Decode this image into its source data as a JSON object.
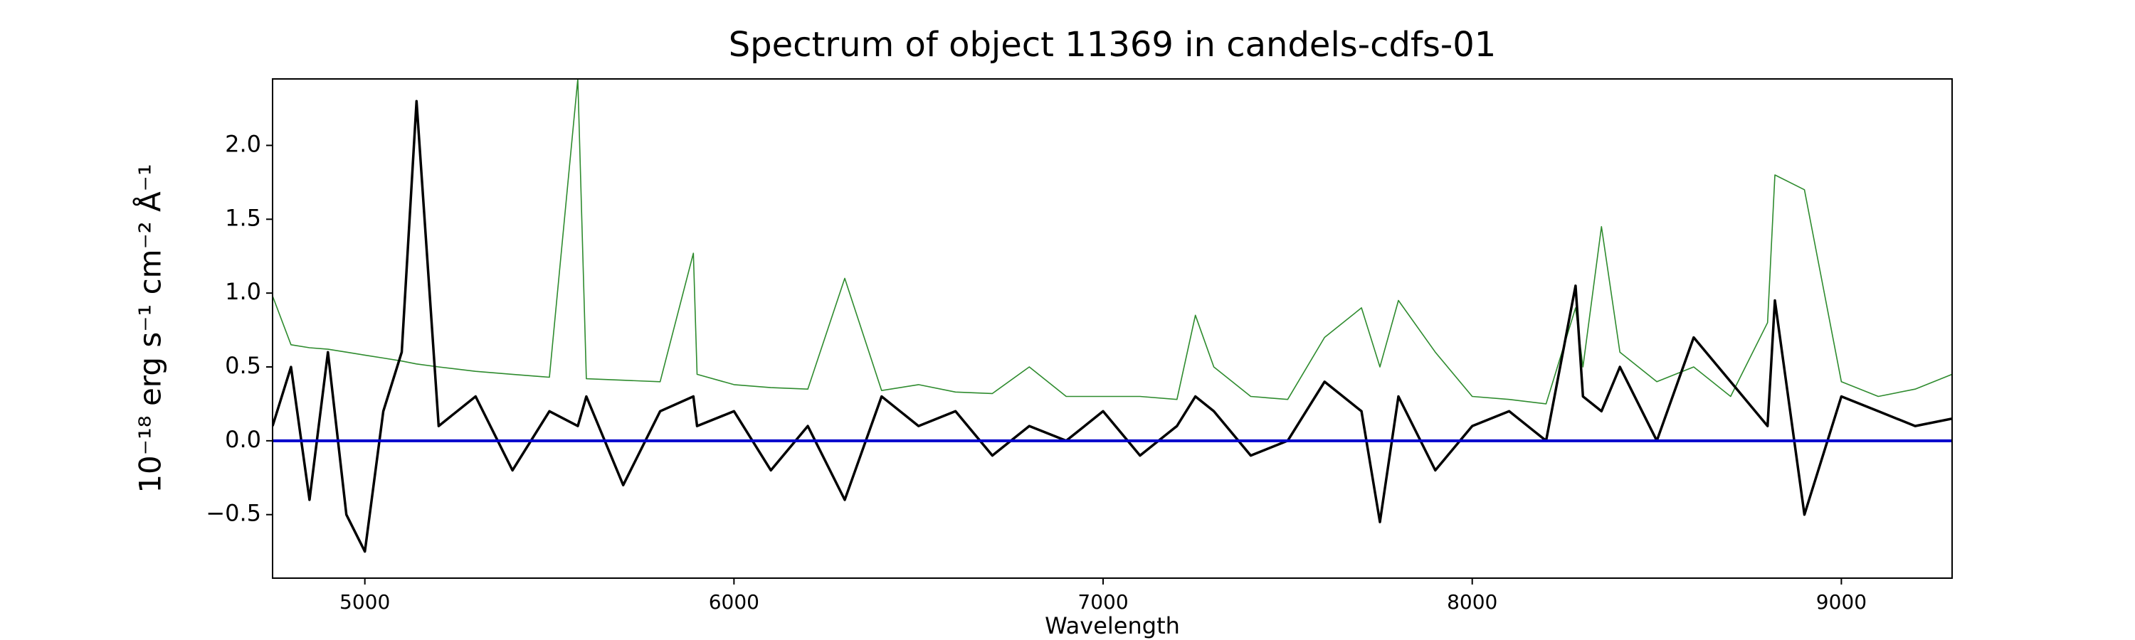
{
  "chart_data": {
    "type": "line",
    "title": "Spectrum of object 11369 in candels-cdfs-01",
    "xlabel": "Wavelength",
    "ylabel": "10⁻¹⁸ erg s⁻¹ cm⁻² Å⁻¹",
    "x": [
      4750,
      4800,
      4850,
      4900,
      4950,
      5000,
      5050,
      5100,
      5140,
      5200,
      5300,
      5400,
      5500,
      5577,
      5600,
      5700,
      5800,
      5890,
      5900,
      6000,
      6100,
      6200,
      6300,
      6400,
      6500,
      6600,
      6700,
      6800,
      6900,
      7000,
      7100,
      7200,
      7250,
      7300,
      7400,
      7500,
      7600,
      7700,
      7750,
      7800,
      7900,
      8000,
      8100,
      8200,
      8280,
      8300,
      8350,
      8400,
      8500,
      8600,
      8700,
      8800,
      8820,
      8900,
      9000,
      9100,
      9200,
      9300
    ],
    "series": [
      {
        "color": "#2e8b2e",
        "width": 1.6,
        "values": [
          0.98,
          0.65,
          0.63,
          0.62,
          0.6,
          0.58,
          0.56,
          0.54,
          0.52,
          0.5,
          0.47,
          0.45,
          0.43,
          2.45,
          0.42,
          0.41,
          0.4,
          1.27,
          0.45,
          0.38,
          0.36,
          0.35,
          1.1,
          0.34,
          0.38,
          0.33,
          0.32,
          0.5,
          0.3,
          0.3,
          0.3,
          0.28,
          0.85,
          0.5,
          0.3,
          0.28,
          0.7,
          0.9,
          0.5,
          0.95,
          0.6,
          0.3,
          0.28,
          0.25,
          0.9,
          0.5,
          1.45,
          0.6,
          0.4,
          0.5,
          0.3,
          0.8,
          1.8,
          1.7,
          0.4,
          0.3,
          0.35,
          0.45
        ]
      },
      {
        "color": "#000000",
        "width": 3.5,
        "values": [
          0.1,
          0.5,
          -0.4,
          0.6,
          -0.5,
          -0.75,
          0.2,
          0.6,
          2.3,
          0.1,
          0.3,
          -0.2,
          0.2,
          0.1,
          0.3,
          -0.3,
          0.2,
          0.3,
          0.1,
          0.2,
          -0.2,
          0.1,
          -0.4,
          0.3,
          0.1,
          0.2,
          -0.1,
          0.1,
          0.0,
          0.2,
          -0.1,
          0.1,
          0.3,
          0.2,
          -0.1,
          0.0,
          0.4,
          0.2,
          -0.55,
          0.3,
          -0.2,
          0.1,
          0.2,
          0.0,
          1.05,
          0.3,
          0.2,
          0.5,
          0.0,
          0.7,
          0.4,
          0.1,
          0.95,
          -0.5,
          0.3,
          0.2,
          0.1,
          0.15
        ]
      }
    ],
    "hline": {
      "value": 0,
      "color": "#0000cc"
    },
    "xlim": [
      4750,
      9300
    ],
    "ylim": [
      -0.93,
      2.45
    ],
    "xticks": [
      5000,
      6000,
      7000,
      8000,
      9000
    ],
    "yticks": [
      {
        "value": -0.5,
        "label": "−0.5"
      },
      {
        "value": 0,
        "label": "0.0"
      },
      {
        "value": 0.5,
        "label": "0.5"
      },
      {
        "value": 1,
        "label": "1.0"
      },
      {
        "value": 1.5,
        "label": "1.5"
      },
      {
        "value": 2,
        "label": "2.0"
      }
    ]
  }
}
